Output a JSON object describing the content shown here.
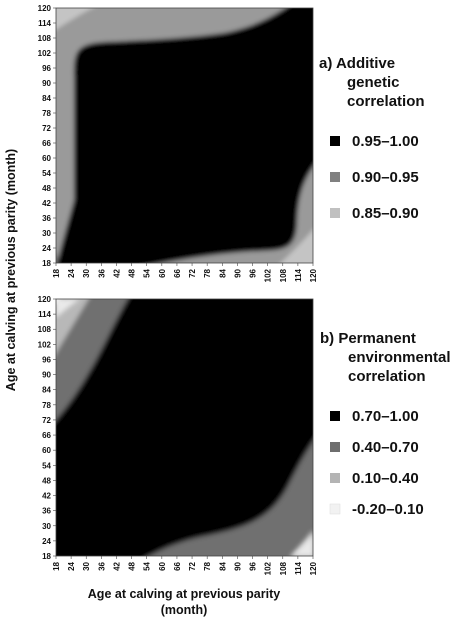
{
  "chart_data": [
    {
      "type": "heatmap",
      "panel": "a)",
      "title_lines": [
        "a)  Additive",
        "genetic",
        "correlation"
      ],
      "x_ticks": [
        18,
        24,
        30,
        36,
        42,
        48,
        54,
        60,
        66,
        72,
        78,
        84,
        90,
        96,
        102,
        108,
        114,
        120
      ],
      "y_ticks": [
        18,
        24,
        30,
        36,
        42,
        48,
        54,
        60,
        66,
        72,
        78,
        84,
        90,
        96,
        102,
        108,
        114,
        120
      ],
      "xlim": [
        18,
        120
      ],
      "ylim": [
        18,
        120
      ],
      "ylabel": "Age at calving at previous parity (month)",
      "classes": [
        {
          "label": "0.95–1.00",
          "color": "#000000"
        },
        {
          "label": "0.90–0.95",
          "color": "#808080"
        },
        {
          "label": "0.85–0.90",
          "color": "#c0c0c0"
        }
      ]
    },
    {
      "type": "heatmap",
      "panel": "b)",
      "title_lines": [
        "b) Permanent",
        "environmental",
        "correlation"
      ],
      "x_ticks": [
        18,
        24,
        30,
        36,
        42,
        48,
        54,
        60,
        66,
        72,
        78,
        84,
        90,
        96,
        102,
        108,
        114,
        120
      ],
      "y_ticks": [
        18,
        24,
        30,
        36,
        42,
        48,
        54,
        60,
        66,
        72,
        78,
        84,
        90,
        96,
        102,
        108,
        114,
        120
      ],
      "xlim": [
        18,
        120
      ],
      "ylim": [
        18,
        120
      ],
      "xlabel_lines": [
        "Age at calving at previous parity",
        "(month)"
      ],
      "classes": [
        {
          "label": "0.70–1.00",
          "color": "#000000"
        },
        {
          "label": "0.40–0.70",
          "color": "#6e6e6e"
        },
        {
          "label": "0.10–0.40",
          "color": "#b4b4b4"
        },
        {
          "label": "-0.20–0.10",
          "color": "#f2f2f2"
        }
      ]
    }
  ]
}
